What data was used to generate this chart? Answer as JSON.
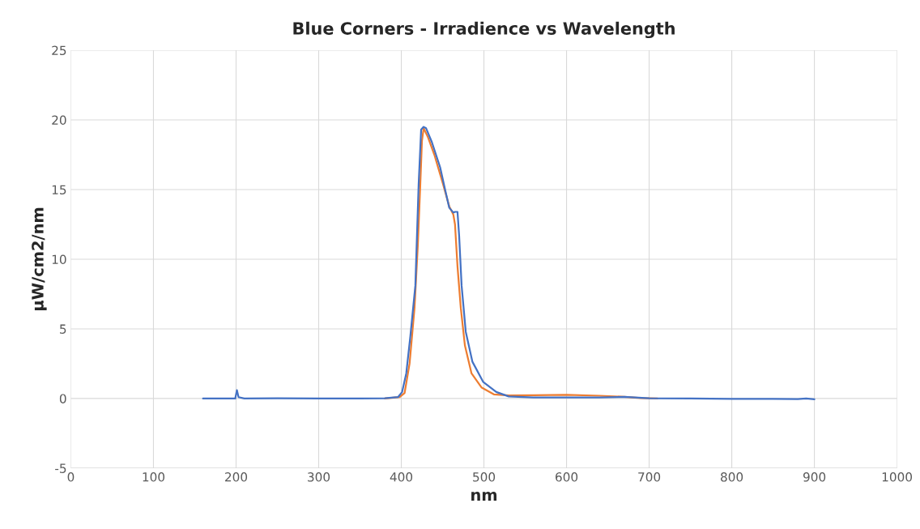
{
  "chart_data": {
    "type": "line",
    "title": "Blue Corners - Irradience vs Wavelength",
    "xlabel": "nm",
    "ylabel": "µW/cm2/nm",
    "xlim": [
      0,
      1000
    ],
    "xticks": [
      0,
      100,
      200,
      300,
      400,
      500,
      600,
      700,
      800,
      900,
      1000
    ],
    "ylim": [
      -5,
      25
    ],
    "yticks": [
      -5,
      0,
      5,
      10,
      15,
      20,
      25
    ],
    "grid": true,
    "series": [
      {
        "color": "#ed7d31",
        "x": [
          380,
          398,
          404,
          410,
          416,
          420,
          423,
          425,
          427,
          432,
          440,
          450,
          458,
          463,
          465,
          468,
          472,
          477,
          485,
          497,
          512,
          530,
          560,
          600,
          640,
          670,
          690,
          710
        ],
        "values": [
          0,
          0.1,
          0.4,
          2.5,
          6.5,
          11,
          15.4,
          18.5,
          19.4,
          18.8,
          17.5,
          15.5,
          13.8,
          13.2,
          12.5,
          9.5,
          6.5,
          3.8,
          1.8,
          0.8,
          0.3,
          0.22,
          0.24,
          0.26,
          0.2,
          0.12,
          0.03,
          0
        ]
      },
      {
        "color": "#4472c4",
        "x": [
          160,
          199,
          201,
          203,
          210,
          250,
          300,
          350,
          380,
          396,
          401,
          406,
          411,
          417,
          421,
          424,
          427,
          430,
          437,
          447,
          453,
          458,
          463,
          465,
          468,
          470,
          473,
          478,
          486,
          499,
          515,
          530,
          560,
          600,
          640,
          670,
          700,
          750,
          800,
          850,
          880,
          890,
          900
        ],
        "values": [
          0,
          0,
          0.6,
          0.1,
          0,
          0.02,
          0,
          0,
          0.02,
          0.1,
          0.47,
          1.8,
          4.5,
          8.1,
          15.4,
          19.3,
          19.5,
          19.4,
          18.4,
          16.6,
          15,
          13.7,
          13.35,
          13.4,
          13.4,
          11.7,
          8.1,
          4.8,
          2.65,
          1.2,
          0.47,
          0.15,
          0.08,
          0.08,
          0.07,
          0.12,
          0.02,
          0,
          -0.02,
          -0.03,
          -0.04,
          0,
          -0.06
        ]
      }
    ]
  }
}
